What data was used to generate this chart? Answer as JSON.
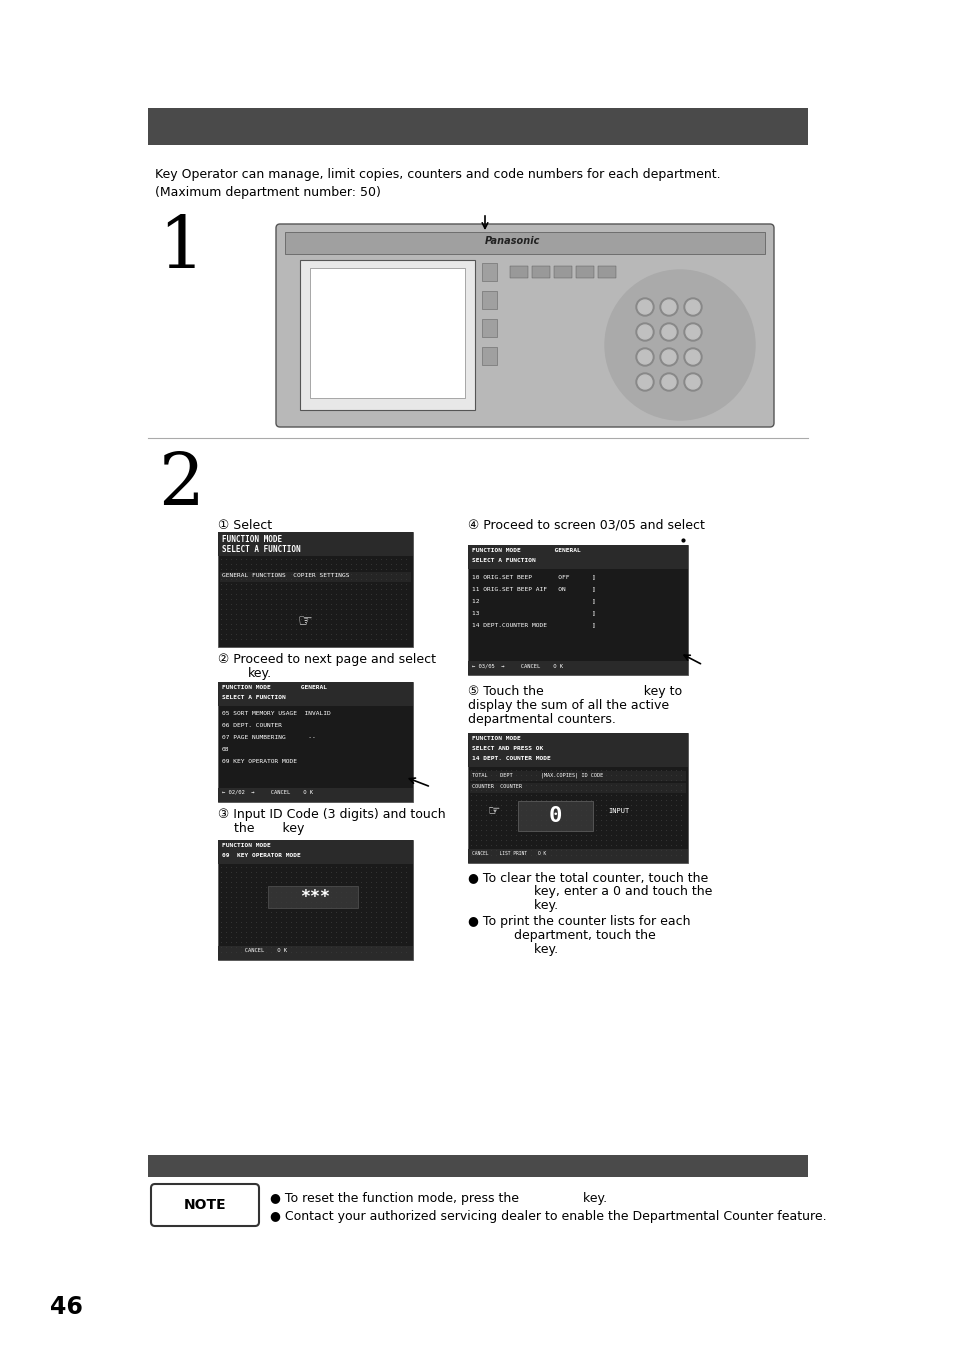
{
  "page_number": "46",
  "bg_color": "#ffffff",
  "header_bar_color": "#4a4a4a",
  "footer_bar_color": "#4a4a4a",
  "intro_line1": "Key Operator can manage, limit copies, counters and code numbers for each department.",
  "intro_line2": "(Maximum department number: 50)",
  "note_label": "NOTE",
  "note_text1": "● To reset the function mode, press the                key.",
  "note_text2": "● Contact your authorized servicing dealer to enable the Departmental Counter feature.",
  "circle1": "① Select",
  "circle2_line1": "② Proceed to next page and select",
  "circle2_line2": "                                         key.",
  "circle3_line1": "③ Input ID Code (3 digits) and touch",
  "circle3_line2": "    the       key",
  "circle4": "④ Proceed to screen 03/05 and select",
  "circle5_line1": "⑤ Touch the                         key to",
  "circle5_line2": "display the sum of all the active",
  "circle5_line3": "departmental counters.",
  "bullet1_line1": "● To clear the total counter, touch the",
  "bullet1_line2": "         key, enter a 0 and touch the",
  "bullet1_line3": "         key.",
  "bullet2_line1": "● To print the counter lists for each",
  "bullet2_line2": "    department, touch the",
  "bullet2_line3": "         key."
}
